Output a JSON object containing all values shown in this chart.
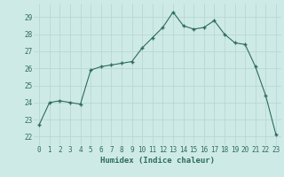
{
  "x": [
    0,
    1,
    2,
    3,
    4,
    5,
    6,
    7,
    8,
    9,
    10,
    11,
    12,
    13,
    14,
    15,
    16,
    17,
    18,
    19,
    20,
    21,
    22,
    23
  ],
  "y": [
    22.7,
    24.0,
    24.1,
    24.0,
    23.9,
    25.9,
    26.1,
    26.2,
    26.3,
    26.4,
    27.2,
    27.8,
    28.4,
    29.3,
    28.5,
    28.3,
    28.4,
    28.8,
    28.0,
    27.5,
    27.4,
    26.1,
    24.4,
    22.1
  ],
  "xlabel": "Humidex (Indice chaleur)",
  "ylabel": "",
  "ylim": [
    21.5,
    29.8
  ],
  "xlim": [
    -0.5,
    23.5
  ],
  "yticks": [
    22,
    23,
    24,
    25,
    26,
    27,
    28,
    29
  ],
  "xticks": [
    0,
    1,
    2,
    3,
    4,
    5,
    6,
    7,
    8,
    9,
    10,
    11,
    12,
    13,
    14,
    15,
    16,
    17,
    18,
    19,
    20,
    21,
    22,
    23
  ],
  "line_color": "#2e6b5e",
  "marker": "+",
  "bg_color": "#ceeae7",
  "grid_color": "#b8d8d5",
  "tick_label_color": "#2e6b5e",
  "xlabel_color": "#2e6b5e",
  "font_family": "monospace",
  "tick_fontsize": 5.5,
  "xlabel_fontsize": 6.5
}
